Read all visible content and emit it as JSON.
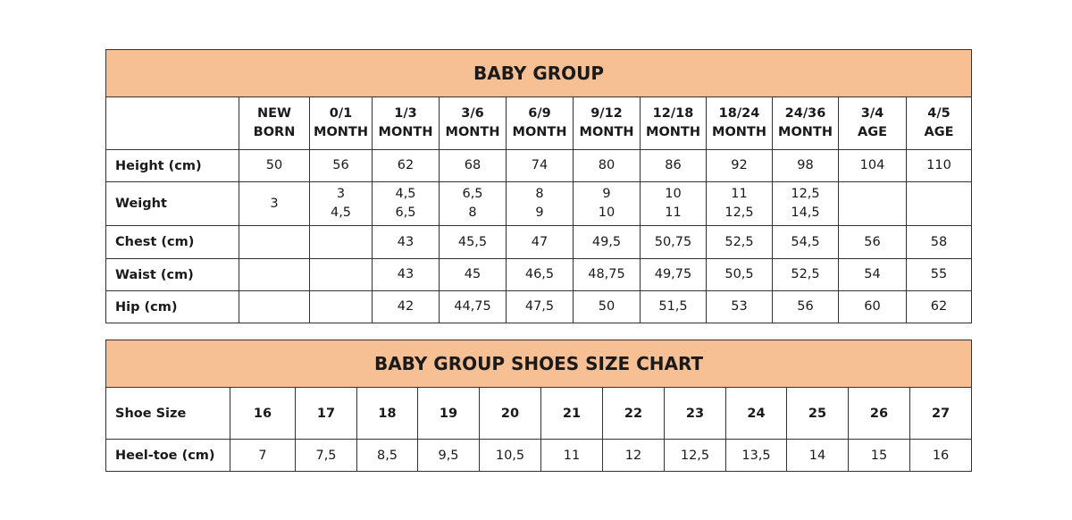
{
  "baby_group": {
    "title": "BABY GROUP",
    "columns": [
      [
        "NEW",
        "BORN"
      ],
      [
        "0/1",
        "MONTH"
      ],
      [
        "1/3",
        "MONTH"
      ],
      [
        "3/6",
        "MONTH"
      ],
      [
        "6/9",
        "MONTH"
      ],
      [
        "9/12",
        "MONTH"
      ],
      [
        "12/18",
        "MONTH"
      ],
      [
        "18/24",
        "MONTH"
      ],
      [
        "24/36",
        "MONTH"
      ],
      [
        "3/4",
        "AGE"
      ],
      [
        "4/5",
        "AGE"
      ]
    ],
    "rows": [
      {
        "label": "Height (cm)",
        "values": [
          [
            "50"
          ],
          [
            "56"
          ],
          [
            "62"
          ],
          [
            "68"
          ],
          [
            "74"
          ],
          [
            "80"
          ],
          [
            "86"
          ],
          [
            "92"
          ],
          [
            "98"
          ],
          [
            "104"
          ],
          [
            "110"
          ]
        ]
      },
      {
        "label": "Weight",
        "values": [
          [
            "3"
          ],
          [
            "3",
            "4,5"
          ],
          [
            "4,5",
            "6,5"
          ],
          [
            "6,5",
            "8"
          ],
          [
            "8",
            "9"
          ],
          [
            "9",
            "10"
          ],
          [
            "10",
            "11"
          ],
          [
            "11",
            "12,5"
          ],
          [
            "12,5",
            "14,5"
          ],
          [],
          []
        ]
      },
      {
        "label": "Chest (cm)",
        "values": [
          [],
          [],
          [
            "43"
          ],
          [
            "45,5"
          ],
          [
            "47"
          ],
          [
            "49,5"
          ],
          [
            "50,75"
          ],
          [
            "52,5"
          ],
          [
            "54,5"
          ],
          [
            "56"
          ],
          [
            "58"
          ]
        ]
      },
      {
        "label": "Waist (cm)",
        "values": [
          [],
          [],
          [
            "43"
          ],
          [
            "45"
          ],
          [
            "46,5"
          ],
          [
            "48,75"
          ],
          [
            "49,75"
          ],
          [
            "50,5"
          ],
          [
            "52,5"
          ],
          [
            "54"
          ],
          [
            "55"
          ]
        ]
      },
      {
        "label": "Hip (cm)",
        "values": [
          [],
          [],
          [
            "42"
          ],
          [
            "44,75"
          ],
          [
            "47,5"
          ],
          [
            "50"
          ],
          [
            "51,5"
          ],
          [
            "53"
          ],
          [
            "56"
          ],
          [
            "60"
          ],
          [
            "62"
          ]
        ]
      }
    ]
  },
  "shoes": {
    "title": "BABY GROUP SHOES SIZE CHART",
    "size_label": "Shoe Size",
    "sizes": [
      "16",
      "17",
      "18",
      "19",
      "20",
      "21",
      "22",
      "23",
      "24",
      "25",
      "26",
      "27"
    ],
    "heel_label": "Heel-toe (cm)",
    "heel_toe": [
      "7",
      "7,5",
      "8,5",
      "9,5",
      "10,5",
      "11",
      "12",
      "12,5",
      "13,5",
      "14",
      "15",
      "16"
    ]
  },
  "colors": {
    "header_fill": "#f7bf94",
    "border": "#333333"
  }
}
